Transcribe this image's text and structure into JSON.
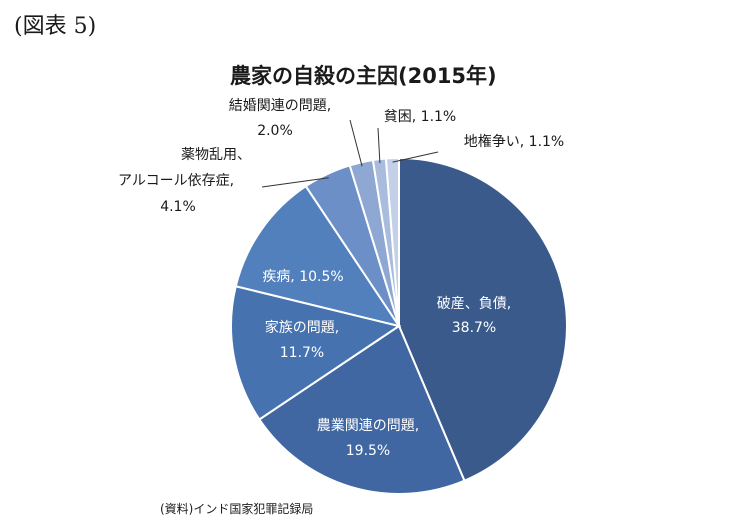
{
  "figure_label": "(図表 5)",
  "source_note": "(資料)インド国家犯罪記録局",
  "chart_data": {
    "type": "pie",
    "title": "農家の自殺の主因(2015年)",
    "start": "12 o'clock",
    "direction": "clockwise",
    "slices": [
      {
        "label": "破産、負債",
        "value": 38.7,
        "value_text": "38.7%",
        "color": "#3a5a8c"
      },
      {
        "label": "農業関連の問題",
        "value": 19.5,
        "value_text": "19.5%",
        "color": "#4067a1"
      },
      {
        "label": "家族の問題",
        "value": 11.7,
        "value_text": "11.7%",
        "color": "#4673b0"
      },
      {
        "label": "疾病",
        "value": 10.5,
        "value_text": "10.5%",
        "color": "#5180bd"
      },
      {
        "label": "薬物乱用、アルコール依存症",
        "value": 4.1,
        "value_text": "4.1%",
        "color": "#6b8fc6"
      },
      {
        "label": "結婚関連の問題",
        "value": 2.0,
        "value_text": "2.0%",
        "color": "#8ea8d3"
      },
      {
        "label": "貧困",
        "value": 1.1,
        "value_text": "1.1%",
        "color": "#a9bcdd"
      },
      {
        "label": "地権争い",
        "value": 1.1,
        "value_text": "1.1%",
        "color": "#c3d0e7"
      }
    ],
    "label_texts": {
      "s0_line1": "破産、負債,",
      "s0_line2": "38.7%",
      "s1_line1": "農業関連の問題,",
      "s1_line2": "19.5%",
      "s2_line1": "家族の問題,",
      "s2_line2": "11.7%",
      "s3_line1": "疾病, 10.5%",
      "s4_line1": "薬物乱用、",
      "s4_line2": "アルコール依存症,",
      "s4_line3": "4.1%",
      "s5_line1": "結婚関連の問題,",
      "s5_line2": "2.0%",
      "s6_line1": "貧困, 1.1%",
      "s7_line1": "地権争い, 1.1%"
    }
  }
}
